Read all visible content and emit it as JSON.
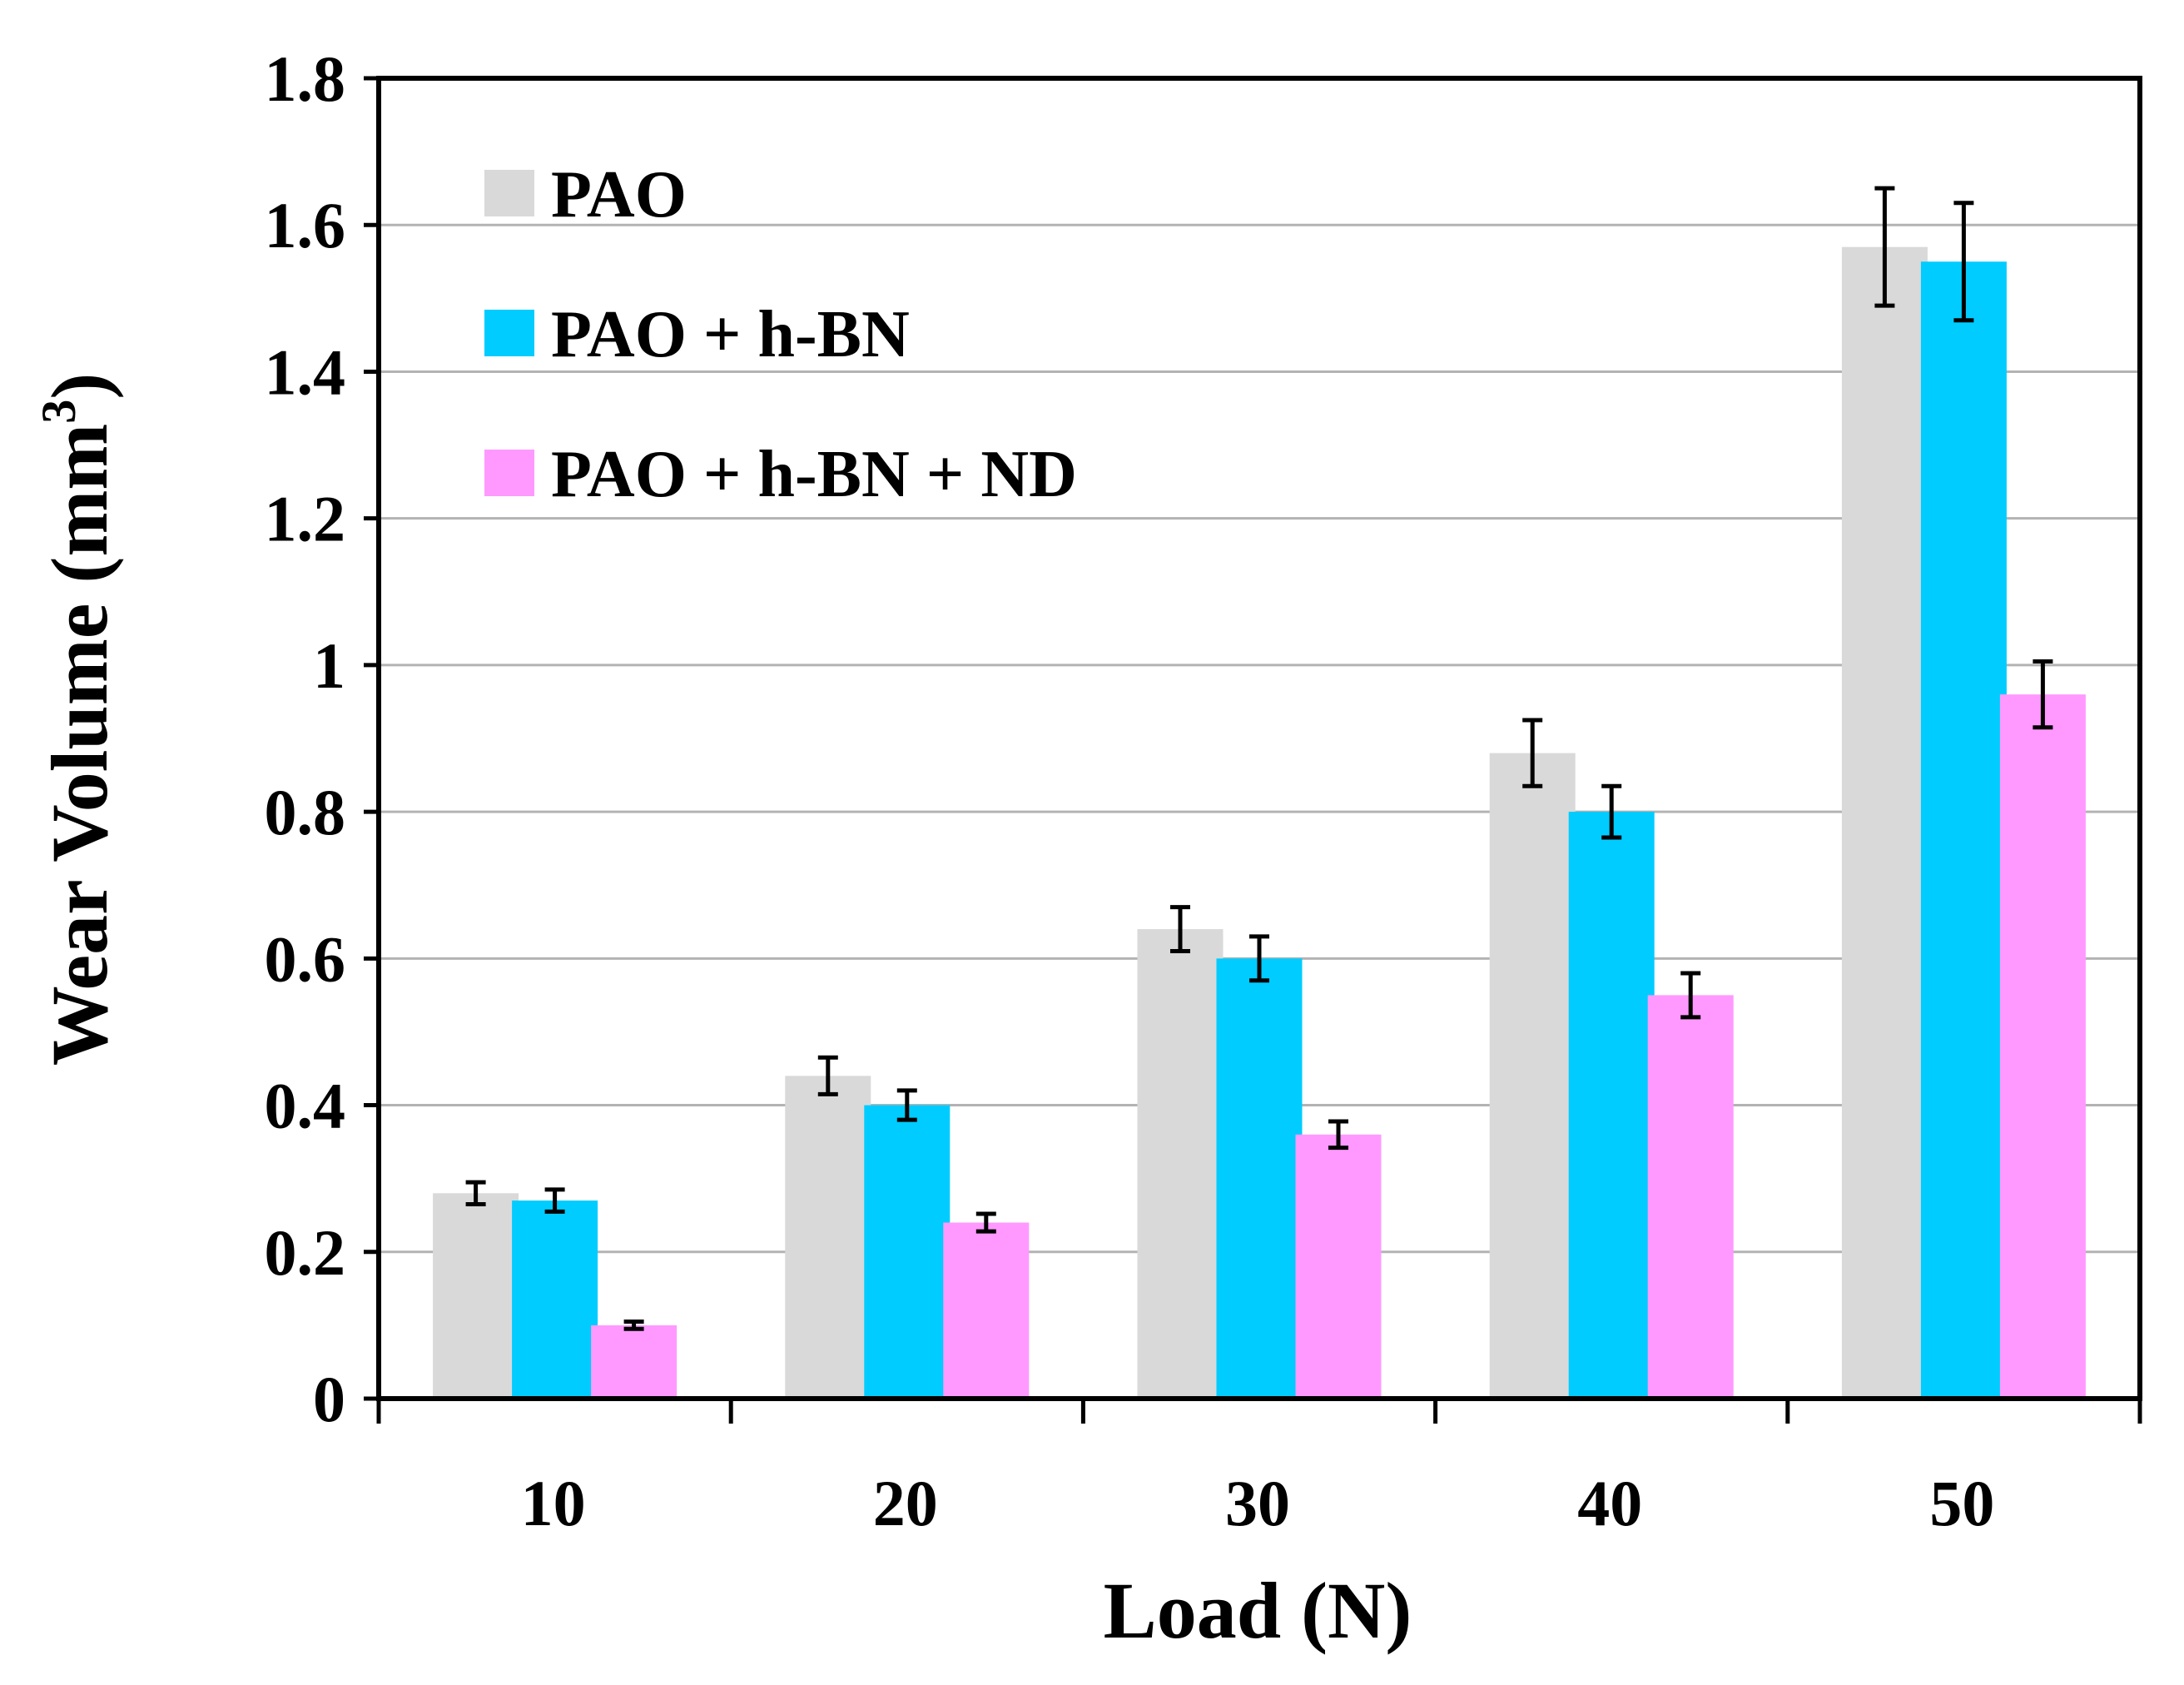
{
  "chart_data": {
    "type": "bar",
    "title": "",
    "xlabel": "Load (N)",
    "ylabel_main": "Wear Volume (mm",
    "ylabel_sup": "3",
    "ylabel_close": ")",
    "categories": [
      "10",
      "20",
      "30",
      "40",
      "50"
    ],
    "ylim": [
      0,
      1.8
    ],
    "yticks": [
      "0",
      "0.2",
      "0.4",
      "0.6",
      "0.8",
      "1",
      "1.2",
      "1.4",
      "1.6",
      "1.8"
    ],
    "grid": true,
    "legend_position": "top-left",
    "series": [
      {
        "name": "PAO",
        "color": "#d9d9d9",
        "values": [
          0.28,
          0.44,
          0.64,
          0.88,
          1.57
        ],
        "errors": [
          0.015,
          0.025,
          0.03,
          0.045,
          0.08
        ]
      },
      {
        "name": "PAO + h-BN",
        "color": "#00ccff",
        "values": [
          0.27,
          0.4,
          0.6,
          0.8,
          1.55
        ],
        "errors": [
          0.015,
          0.02,
          0.03,
          0.035,
          0.08
        ]
      },
      {
        "name": "PAO + h-BN + ND",
        "color": "#ff99ff",
        "values": [
          0.1,
          0.24,
          0.36,
          0.55,
          0.96
        ],
        "errors": [
          0.005,
          0.012,
          0.018,
          0.03,
          0.045
        ]
      }
    ]
  }
}
